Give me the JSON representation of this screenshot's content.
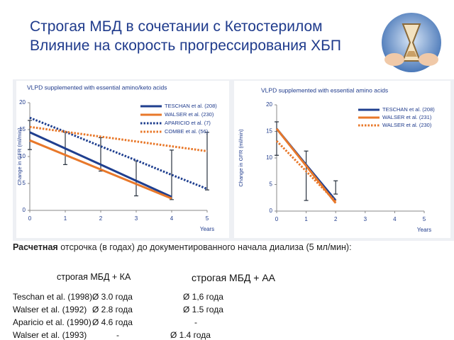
{
  "slide": {
    "title": [
      "Строгая МБД в сочетании с Кетостерилом",
      "Влияние на скорость прогрессирования ХБП"
    ],
    "note_bold": "Расчетная",
    "note_text": "отсрочка (в годах) до документированного начала диализа (5 мл/мин):",
    "table": {
      "headers": [
        "строгая МБД + КА",
        "строгая МБД + АА"
      ],
      "rows": [
        [
          "Teschan et al. (1998)",
          "Ø 3.0 года",
          "Ø 1,6 года"
        ],
        [
          "Walser et al. (1992)",
          "Ø 2.8 года",
          "Ø 1.5 года"
        ],
        [
          "Aparicio et al. (1990)",
          "Ø 4.6 года",
          "-"
        ],
        [
          "Walser et al. (1993)",
          "-",
          "Ø 1.4 года"
        ]
      ]
    }
  },
  "chart_data": [
    {
      "type": "line",
      "title": "VLPD supplemented with essential amino/keto acids",
      "y_label": "Change in GFR (ml/min)",
      "x_label": "Years",
      "x": [
        0,
        1,
        2,
        3,
        4,
        5
      ],
      "xlim": [
        0,
        5
      ],
      "xticks": [
        0,
        1,
        2,
        3,
        4,
        5
      ],
      "ylim": [
        0,
        20
      ],
      "yticks": [
        0,
        5,
        10,
        15,
        20
      ],
      "series": [
        {
          "name": "TESCHAN et al. (208)",
          "color": "#1f3f8f",
          "style": "solid",
          "values": [
            14.5,
            11.5,
            8.5,
            5.5,
            2.5,
            null
          ]
        },
        {
          "name": "WALSER et al. (230)",
          "color": "#e8782a",
          "style": "solid",
          "values": [
            13,
            10.3,
            7.6,
            4.9,
            2.2,
            null
          ]
        },
        {
          "name": "APARICIO et al. (7)",
          "color": "#1f3f8f",
          "style": "dotted",
          "values": [
            17.2,
            14.6,
            11.9,
            9.3,
            6.6,
            4
          ]
        },
        {
          "name": "COMBE et al. (56)",
          "color": "#e8782a",
          "style": "dotted",
          "values": [
            15.5,
            14.6,
            13.7,
            12.8,
            11.9,
            11
          ]
        }
      ],
      "error_bars": {
        "x": [
          0,
          1,
          2,
          3,
          4,
          5
        ],
        "low": [
          11.3,
          8.5,
          7.3,
          2.7,
          2,
          3.8
        ],
        "high": [
          16.7,
          14.5,
          13.5,
          9.2,
          11.2,
          14.5
        ]
      }
    },
    {
      "type": "line",
      "title": "VLPD supplemented with essential amino acids",
      "y_label": "Change in GFR (ml/min)",
      "x_label": "Years",
      "x": [
        0,
        1,
        2
      ],
      "xlim": [
        0,
        5
      ],
      "xticks": [
        0,
        1,
        2,
        3,
        4,
        5
      ],
      "ylim": [
        0,
        20
      ],
      "yticks": [
        0,
        5,
        10,
        15,
        20
      ],
      "series": [
        {
          "name": "TESCHAN et al. (208)",
          "color": "#1f3f8f",
          "style": "solid",
          "values": [
            15.5,
            8.7,
            2
          ]
        },
        {
          "name": "WALSER et al. (231)",
          "color": "#e8782a",
          "style": "solid",
          "values": [
            15.5,
            8.5,
            1.5
          ]
        },
        {
          "name": "WALSER et al. (230)",
          "color": "#e8782a",
          "style": "dotted",
          "values": [
            13.2,
            7.5,
            1.8
          ]
        }
      ],
      "error_bars": {
        "x": [
          0,
          1,
          2
        ],
        "low": [
          10.5,
          2,
          3.2
        ],
        "high": [
          16.8,
          11.3,
          5.7
        ]
      }
    }
  ]
}
